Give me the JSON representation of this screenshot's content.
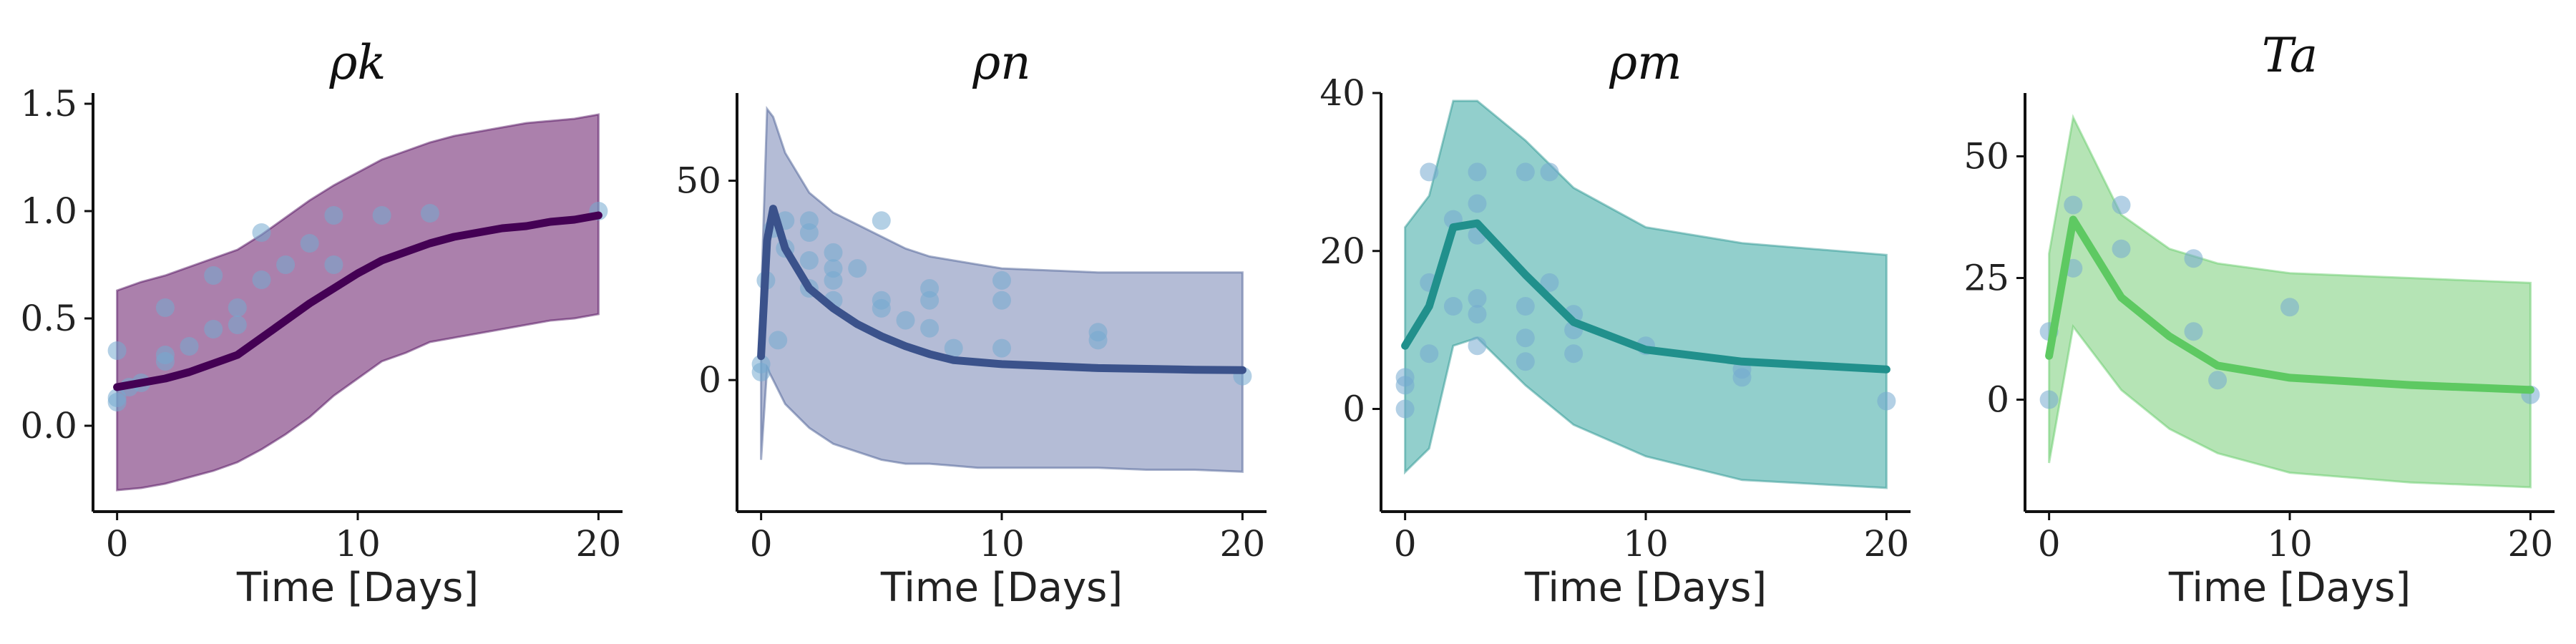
{
  "chart_data": [
    {
      "type": "line",
      "title": "ρk",
      "xlabel": "Time [Days]",
      "ylabel": "",
      "xlim": [
        -1,
        21
      ],
      "ylim": [
        -0.4,
        1.55
      ],
      "xticks": [
        0,
        10,
        20
      ],
      "yticks": [
        0.0,
        0.5,
        1.0,
        1.5
      ],
      "ytick_labels": [
        "0.0",
        "0.5",
        "1.0",
        "1.5"
      ],
      "color": "#440154",
      "band_color": "#9c6a9e",
      "grid": false,
      "legend": "none",
      "series": [
        {
          "x": [
            0,
            1,
            2,
            3,
            4,
            5,
            6,
            7,
            8,
            9,
            10,
            11,
            12,
            13,
            14,
            15,
            16,
            17,
            18,
            19,
            20
          ],
          "values": [
            0.18,
            0.2,
            0.22,
            0.25,
            0.29,
            0.33,
            0.41,
            0.49,
            0.57,
            0.64,
            0.71,
            0.77,
            0.81,
            0.85,
            0.88,
            0.9,
            0.92,
            0.93,
            0.95,
            0.96,
            0.98
          ]
        }
      ],
      "band": {
        "x": [
          0,
          1,
          2,
          3,
          4,
          5,
          6,
          7,
          8,
          9,
          10,
          11,
          12,
          13,
          14,
          15,
          16,
          17,
          18,
          19,
          20
        ],
        "upper": [
          0.63,
          0.67,
          0.7,
          0.74,
          0.78,
          0.82,
          0.89,
          0.97,
          1.05,
          1.12,
          1.18,
          1.24,
          1.28,
          1.32,
          1.35,
          1.37,
          1.39,
          1.41,
          1.42,
          1.43,
          1.45
        ],
        "lower": [
          -0.3,
          -0.29,
          -0.27,
          -0.24,
          -0.21,
          -0.17,
          -0.11,
          -0.04,
          0.04,
          0.14,
          0.22,
          0.3,
          0.34,
          0.39,
          0.41,
          0.43,
          0.45,
          0.47,
          0.49,
          0.5,
          0.52
        ]
      },
      "observations": {
        "x": [
          0,
          0,
          0,
          0.5,
          1,
          2,
          2,
          2,
          3,
          4,
          4,
          5,
          5,
          6,
          6,
          7,
          8,
          9,
          9,
          11,
          13,
          20
        ],
        "y": [
          0.35,
          0.13,
          0.11,
          0.18,
          0.2,
          0.55,
          0.33,
          0.3,
          0.37,
          0.7,
          0.45,
          0.55,
          0.47,
          0.9,
          0.68,
          0.75,
          0.85,
          0.98,
          0.75,
          0.98,
          0.99,
          1.0
        ]
      }
    },
    {
      "type": "line",
      "title": "ρn",
      "xlabel": "Time [Days]",
      "ylabel": "",
      "xlim": [
        -1,
        21
      ],
      "ylim": [
        -33,
        72
      ],
      "xticks": [
        0,
        10,
        20
      ],
      "yticks": [
        0,
        50
      ],
      "ytick_labels": [
        "0",
        "50"
      ],
      "color": "#3b528b",
      "band_color": "#a7b0cf",
      "grid": false,
      "legend": "none",
      "series": [
        {
          "x": [
            0,
            0.25,
            0.5,
            1,
            2,
            3,
            4,
            5,
            6,
            7,
            8,
            9,
            10,
            12,
            14,
            16,
            18,
            20
          ],
          "values": [
            6,
            35,
            43,
            33,
            23,
            18,
            14,
            11,
            8.5,
            6.5,
            5,
            4.5,
            4,
            3.5,
            3,
            2.8,
            2.6,
            2.5
          ]
        }
      ],
      "band": {
        "x": [
          0,
          0.25,
          0.5,
          1,
          2,
          3,
          4,
          5,
          6,
          7,
          8,
          9,
          10,
          12,
          14,
          16,
          18,
          20
        ],
        "upper": [
          20,
          68,
          66,
          57,
          47,
          42,
          39,
          36,
          33,
          31,
          30,
          29,
          28,
          27.5,
          27,
          27,
          27,
          27
        ],
        "lower": [
          -20,
          3,
          0,
          -6,
          -12,
          -16,
          -18,
          -20,
          -21,
          -21,
          -21.5,
          -22,
          -22,
          -22,
          -22,
          -22.5,
          -22.5,
          -23
        ]
      },
      "observations": {
        "x": [
          0,
          0,
          0.2,
          0.5,
          0.7,
          1,
          1,
          2,
          2,
          2,
          2,
          3,
          3,
          3,
          3,
          4,
          5,
          5,
          5,
          6,
          7,
          7,
          7,
          8,
          10,
          10,
          10,
          14,
          14,
          20
        ],
        "y": [
          2,
          4,
          25,
          38,
          10,
          40,
          33,
          40,
          37,
          30,
          23,
          32,
          28,
          25,
          20,
          28,
          40,
          20,
          18,
          15,
          23,
          20,
          13,
          8,
          25,
          20,
          8,
          12,
          10,
          1
        ]
      }
    },
    {
      "type": "line",
      "title": "ρm",
      "xlabel": "Time [Days]",
      "ylabel": "",
      "xlim": [
        -1,
        21
      ],
      "ylim": [
        -13,
        40
      ],
      "xticks": [
        0,
        10,
        20
      ],
      "yticks": [
        0,
        20,
        40
      ],
      "ytick_labels": [
        "0",
        "20",
        "40"
      ],
      "color": "#21908c",
      "band_color": "#7fc7c3",
      "grid": false,
      "legend": "none",
      "series": [
        {
          "x": [
            0,
            1,
            2,
            3,
            5,
            7,
            10,
            14,
            20
          ],
          "values": [
            8,
            13,
            23,
            23.5,
            17,
            11,
            7.5,
            6,
            5
          ]
        }
      ],
      "band": {
        "x": [
          0,
          1,
          2,
          3,
          5,
          7,
          10,
          14,
          20
        ],
        "upper": [
          23,
          27,
          39,
          39,
          34,
          28,
          23,
          21,
          19.5
        ],
        "lower": [
          -8,
          -5,
          8,
          9,
          3,
          -2,
          -6,
          -9,
          -10
        ]
      },
      "observations": {
        "x": [
          0,
          0,
          0,
          1,
          1,
          1,
          2,
          2,
          3,
          3,
          3,
          3,
          3,
          3,
          5,
          5,
          5,
          5,
          6,
          6,
          7,
          7,
          7,
          10,
          14,
          14,
          20
        ],
        "y": [
          4,
          3,
          0,
          30,
          16,
          7,
          24,
          13,
          30,
          26,
          22,
          14,
          12,
          8,
          30,
          13,
          9,
          6,
          30,
          16,
          12,
          10,
          7,
          8,
          5,
          4,
          1
        ]
      }
    },
    {
      "type": "line",
      "title": "Ta",
      "xlabel": "Time [Days]",
      "ylabel": "",
      "xlim": [
        -1,
        21
      ],
      "ylim": [
        -23,
        63
      ],
      "xticks": [
        0,
        10,
        20
      ],
      "yticks": [
        0,
        25,
        50
      ],
      "ytick_labels": [
        "0",
        "25",
        "50"
      ],
      "color": "#5ec962",
      "band_color": "#a8dfa8",
      "grid": false,
      "legend": "none",
      "series": [
        {
          "x": [
            0,
            1,
            3,
            5,
            7,
            10,
            15,
            20
          ],
          "values": [
            9,
            37,
            21,
            13,
            7,
            4.5,
            3,
            2
          ]
        }
      ],
      "band": {
        "x": [
          0,
          1,
          3,
          5,
          7,
          10,
          15,
          20
        ],
        "upper": [
          30,
          58,
          38,
          31,
          28,
          26,
          25,
          24
        ],
        "lower": [
          -13,
          15,
          2,
          -6,
          -11,
          -15,
          -17,
          -18
        ]
      },
      "observations": {
        "x": [
          0,
          0,
          1,
          1,
          3,
          3,
          6,
          6,
          7,
          10,
          20
        ],
        "y": [
          14,
          0,
          40,
          27,
          40,
          31,
          29,
          14,
          4,
          19,
          1
        ]
      }
    }
  ],
  "colors": {
    "observation": "#74a9cf",
    "axis": "#111111",
    "text": "#222222"
  }
}
